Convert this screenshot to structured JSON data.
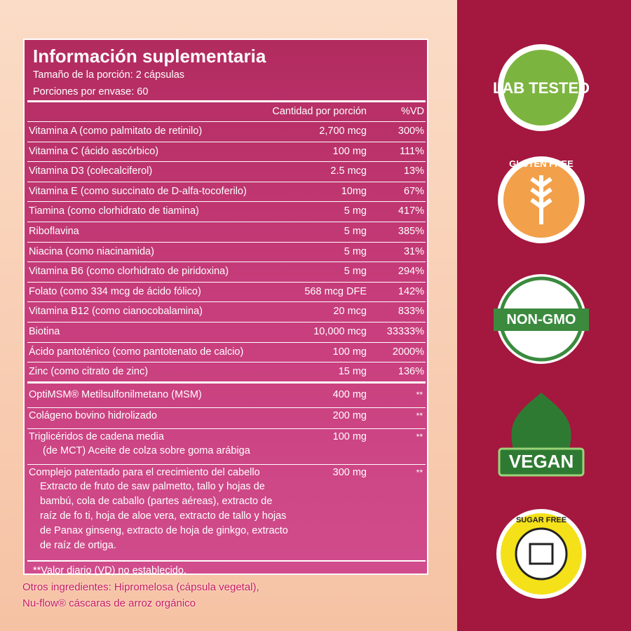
{
  "header": {
    "title": "Información suplementaria",
    "serving_size": "Tamaño de la porción: 2 cápsulas",
    "servings": "Porciones por envase: 60"
  },
  "table": {
    "column_headers": [
      "Cantidad por porción",
      "%VD"
    ],
    "rows": [
      [
        "Vitamina A (como palmitato de retinilo)",
        "2,700 mcg",
        "300%"
      ],
      [
        "Vitamina C (ácido ascórbico)",
        "100 mg",
        "111%"
      ],
      [
        "Vitamina D3 (colecalciferol)",
        "2.5 mcg",
        "13%"
      ],
      [
        "Vitamina E (como succinato de D-alfa-tocoferilo)",
        "10mg",
        "67%"
      ],
      [
        "Tiamina (como clorhidrato de tiamina)",
        "5 mg",
        "417%"
      ],
      [
        "Riboflavina",
        "5 mg",
        "385%"
      ],
      [
        "Niacina (como niacinamida)",
        "5 mg",
        "31%"
      ],
      [
        "Vitamina B6 (como clorhidrato de piridoxina)",
        "5 mg",
        "294%"
      ],
      [
        "Folato (como 334 mcg de ácido fólico)",
        "568 mcg DFE",
        "142%"
      ],
      [
        "Vitamina B12 (como cianocobalamina)",
        "20 mcg",
        "833%"
      ],
      [
        "Biotina",
        "10,000 mcg",
        "33333%"
      ],
      [
        "Ácido pantoténico (como pantotenato de calcio)",
        "100 mg",
        "2000%"
      ],
      [
        "Zinc (como citrato de zinc)",
        "15 mg",
        "136%"
      ]
    ],
    "blend_rows": [
      {
        "name": "OptiMSM® Metilsulfonilmetano (MSM)",
        "amount": "400 mg",
        "dv": "**",
        "details": []
      },
      {
        "name": "Colágeno bovino hidrolizado",
        "amount": "200 mg",
        "dv": "**",
        "details": []
      },
      {
        "name": "Triglicéridos de cadena media",
        "amount": "100 mg",
        "dv": "**",
        "details": [
          "(de MCT) Aceite de colza sobre goma arábiga"
        ]
      },
      {
        "name": "Complejo patentado para el crecimiento del cabello",
        "amount": "300 mg",
        "dv": "**",
        "details": [
          "Extracto de fruto de saw palmetto, tallo y hojas de",
          "bambú, cola de caballo (partes aéreas), extracto de",
          "raíz de fo ti, hoja de aloe vera, extracto de tallo y hojas",
          "de Panax ginseng, extracto de hoja de ginkgo, extracto",
          "de raíz de ortiga."
        ]
      }
    ],
    "footnote": "**Valor diario (VD) no establecido."
  },
  "other_ingredients": [
    "Otros ingredientes: Hipromelosa (cápsula vegetal),",
    "Nu-flow® cáscaras de arroz orgánico"
  ],
  "badges": [
    "LAB TESTED",
    "GLUTEN FREE",
    "NON-GMO",
    "VEGAN",
    "SUGAR FREE"
  ]
}
